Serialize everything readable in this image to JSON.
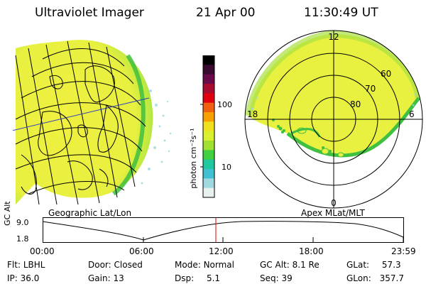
{
  "header": {
    "instrument": "Ultraviolet Imager",
    "date": "21 Apr 00",
    "time": "11:30:49 UT"
  },
  "colorbar": {
    "unit_label": "photon cm⁻²s⁻¹",
    "ticks": [
      "100",
      "10"
    ],
    "colors": [
      "#000000",
      "#3a0a30",
      "#6a0a4a",
      "#a80a30",
      "#e00010",
      "#f06010",
      "#f8a000",
      "#f0e020",
      "#d8f030",
      "#a0e030",
      "#40d040",
      "#20c8a0",
      "#40c0d0",
      "#a0d8e0",
      "#e8f0f0"
    ]
  },
  "left_map": {
    "footer_label": "Geographic Lat/Lon",
    "aurora_color": "#e8f030",
    "edge_color": "#40c040"
  },
  "right_map": {
    "footer_label": "Apex MLat/MLT",
    "mlt_labels": {
      "top": "12",
      "bottom": "0",
      "left": "18",
      "right": "6"
    },
    "lat_labels": [
      "60",
      "70",
      "80"
    ]
  },
  "altitude_plot": {
    "ylabel": "GC Alt",
    "yticks": [
      "9.0",
      "1.8"
    ],
    "xticks": [
      "00:00",
      "06:00",
      "12:00",
      "18:00",
      "23:59"
    ],
    "marker_color": "#e00000"
  },
  "metadata": {
    "flt_label": "Flt:",
    "flt_value": "LBHL",
    "ip_label": "IP:",
    "ip_value": "36.0",
    "door_label": "Door:",
    "door_value": "Closed",
    "gain_label": "Gain:",
    "gain_value": "13",
    "mode_label": "Mode:",
    "mode_value": "Normal",
    "dsp_label": "Dsp:",
    "dsp_value": "5.1",
    "gcalt_label": "GC Alt:",
    "gcalt_value": "8.1 Re",
    "seq_label": "Seq:",
    "seq_value": "39",
    "glat_label": "GLat:",
    "glat_value": "57.3",
    "glon_label": "GLon:",
    "glon_value": "357.7"
  }
}
